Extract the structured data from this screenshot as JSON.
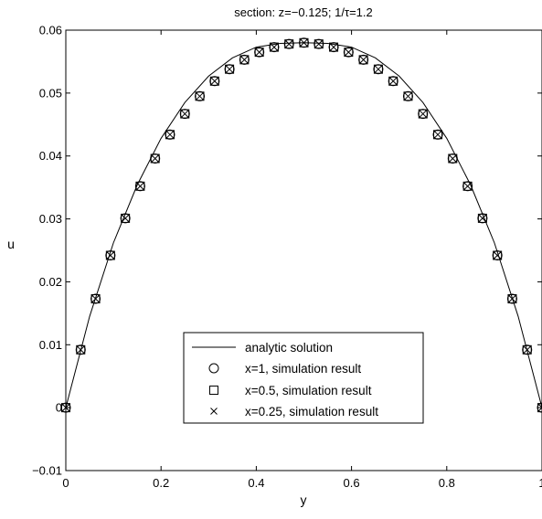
{
  "chart_data": {
    "type": "line",
    "title": "section: z=−0.125; 1/τ=1.2",
    "xlabel": "y",
    "ylabel": "u",
    "xlim": [
      0,
      1
    ],
    "ylim": [
      -0.01,
      0.06
    ],
    "xticks": [
      "0",
      "0.2",
      "0.4",
      "0.6",
      "0.8",
      "1"
    ],
    "yticks": [
      "−0.01",
      "0",
      "0.01",
      "0.02",
      "0.03",
      "0.04",
      "0.05",
      "0.06"
    ],
    "grid": false,
    "legend_position": "lower-center",
    "series": [
      {
        "name": "analytic solution",
        "marker": "line",
        "x": [
          0,
          0.05,
          0.1,
          0.15,
          0.2,
          0.25,
          0.3,
          0.35,
          0.4,
          0.45,
          0.5,
          0.55,
          0.6,
          0.65,
          0.7,
          0.75,
          0.8,
          0.85,
          0.9,
          0.95,
          1
        ],
        "values": [
          0,
          0.0145,
          0.0262,
          0.0354,
          0.0428,
          0.0485,
          0.0527,
          0.0556,
          0.0573,
          0.0579,
          0.058,
          0.0579,
          0.0573,
          0.0556,
          0.0527,
          0.0485,
          0.0428,
          0.0354,
          0.0262,
          0.0145,
          0
        ]
      },
      {
        "name": "x=1, simulation result",
        "marker": "circle",
        "x": [
          0,
          0.03125,
          0.0625,
          0.09375,
          0.125,
          0.15625,
          0.1875,
          0.21875,
          0.25,
          0.28125,
          0.3125,
          0.34375,
          0.375,
          0.40625,
          0.4375,
          0.46875,
          0.5,
          0.53125,
          0.5625,
          0.59375,
          0.625,
          0.65625,
          0.6875,
          0.71875,
          0.75,
          0.78125,
          0.8125,
          0.84375,
          0.875,
          0.90625,
          0.9375,
          0.96875,
          1
        ],
        "values": [
          0,
          0.0092,
          0.0173,
          0.0242,
          0.0301,
          0.0352,
          0.0396,
          0.0434,
          0.0467,
          0.0495,
          0.0519,
          0.0538,
          0.0553,
          0.0565,
          0.0573,
          0.0578,
          0.058,
          0.0578,
          0.0573,
          0.0565,
          0.0553,
          0.0538,
          0.0519,
          0.0495,
          0.0467,
          0.0434,
          0.0396,
          0.0352,
          0.0301,
          0.0242,
          0.0173,
          0.0092,
          0
        ]
      },
      {
        "name": "x=0.5, simulation result",
        "marker": "square",
        "x": [
          0,
          0.03125,
          0.0625,
          0.09375,
          0.125,
          0.15625,
          0.1875,
          0.21875,
          0.25,
          0.28125,
          0.3125,
          0.34375,
          0.375,
          0.40625,
          0.4375,
          0.46875,
          0.5,
          0.53125,
          0.5625,
          0.59375,
          0.625,
          0.65625,
          0.6875,
          0.71875,
          0.75,
          0.78125,
          0.8125,
          0.84375,
          0.875,
          0.90625,
          0.9375,
          0.96875,
          1
        ],
        "values": [
          0,
          0.0092,
          0.0173,
          0.0242,
          0.0301,
          0.0352,
          0.0396,
          0.0434,
          0.0467,
          0.0495,
          0.0519,
          0.0538,
          0.0553,
          0.0565,
          0.0573,
          0.0578,
          0.058,
          0.0578,
          0.0573,
          0.0565,
          0.0553,
          0.0538,
          0.0519,
          0.0495,
          0.0467,
          0.0434,
          0.0396,
          0.0352,
          0.0301,
          0.0242,
          0.0173,
          0.0092,
          0
        ]
      },
      {
        "name": "x=0.25, simulation result",
        "marker": "cross",
        "x": [
          0,
          0.03125,
          0.0625,
          0.09375,
          0.125,
          0.15625,
          0.1875,
          0.21875,
          0.25,
          0.28125,
          0.3125,
          0.34375,
          0.375,
          0.40625,
          0.4375,
          0.46875,
          0.5,
          0.53125,
          0.5625,
          0.59375,
          0.625,
          0.65625,
          0.6875,
          0.71875,
          0.75,
          0.78125,
          0.8125,
          0.84375,
          0.875,
          0.90625,
          0.9375,
          0.96875,
          1
        ],
        "values": [
          0,
          0.0092,
          0.0173,
          0.0242,
          0.0301,
          0.0352,
          0.0396,
          0.0434,
          0.0467,
          0.0495,
          0.0519,
          0.0538,
          0.0553,
          0.0565,
          0.0573,
          0.0578,
          0.058,
          0.0578,
          0.0573,
          0.0565,
          0.0553,
          0.0538,
          0.0519,
          0.0495,
          0.0467,
          0.0434,
          0.0396,
          0.0352,
          0.0301,
          0.0242,
          0.0173,
          0.0092,
          0
        ]
      }
    ],
    "colors": {
      "line": "#000000",
      "background": "#ffffff"
    }
  }
}
